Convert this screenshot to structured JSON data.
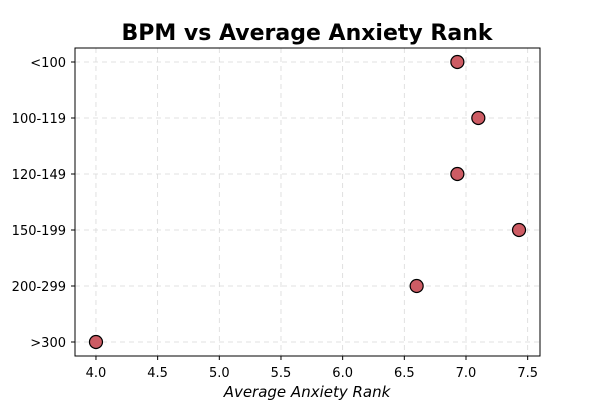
{
  "chart_data": {
    "type": "scatter",
    "title": "BPM vs Average Anxiety Rank",
    "xlabel": "Average Anxiety Rank",
    "ylabel": "",
    "xlim": [
      3.83,
      7.6
    ],
    "x_ticks": [
      "4.0",
      "4.5",
      "5.0",
      "5.5",
      "6.0",
      "6.5",
      "7.0",
      "7.5"
    ],
    "categories": [
      "<100",
      "100-119",
      "120-149",
      "150-199",
      "200-299",
      ">300"
    ],
    "x": [
      6.93,
      7.1,
      6.93,
      7.43,
      6.6,
      4.0
    ],
    "grid": true,
    "point_color": "#cd5c64"
  }
}
